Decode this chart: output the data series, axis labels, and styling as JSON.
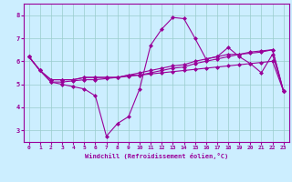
{
  "xlabel": "Windchill (Refroidissement éolien,°C)",
  "bg_color": "#cceeff",
  "line_color": "#990099",
  "grid_color": "#99cccc",
  "ylim": [
    2.5,
    8.5
  ],
  "xlim": [
    -0.5,
    23.5
  ],
  "yticks": [
    3,
    4,
    5,
    6,
    7,
    8
  ],
  "xticks": [
    0,
    1,
    2,
    3,
    4,
    5,
    6,
    7,
    8,
    9,
    10,
    11,
    12,
    13,
    14,
    15,
    16,
    17,
    18,
    19,
    20,
    21,
    22,
    23
  ],
  "series": [
    [
      6.2,
      5.6,
      5.1,
      5.0,
      4.9,
      4.8,
      4.5,
      2.75,
      3.3,
      3.6,
      4.8,
      6.7,
      7.4,
      7.9,
      7.85,
      7.0,
      6.1,
      6.2,
      6.6,
      6.2,
      5.9,
      5.5,
      6.3,
      4.7
    ],
    [
      6.2,
      5.6,
      5.1,
      5.1,
      5.15,
      5.2,
      5.2,
      5.25,
      5.3,
      5.35,
      5.4,
      5.45,
      5.5,
      5.55,
      5.6,
      5.65,
      5.7,
      5.75,
      5.8,
      5.85,
      5.9,
      5.95,
      6.0,
      4.7
    ],
    [
      6.2,
      5.6,
      5.2,
      5.2,
      5.2,
      5.3,
      5.3,
      5.3,
      5.3,
      5.4,
      5.4,
      5.5,
      5.6,
      5.7,
      5.75,
      5.9,
      6.0,
      6.1,
      6.2,
      6.3,
      6.35,
      6.4,
      6.5,
      4.7
    ],
    [
      6.2,
      5.6,
      5.2,
      5.2,
      5.2,
      5.3,
      5.3,
      5.3,
      5.3,
      5.4,
      5.5,
      5.6,
      5.7,
      5.8,
      5.85,
      6.0,
      6.1,
      6.2,
      6.3,
      6.3,
      6.4,
      6.45,
      6.5,
      4.7
    ]
  ]
}
